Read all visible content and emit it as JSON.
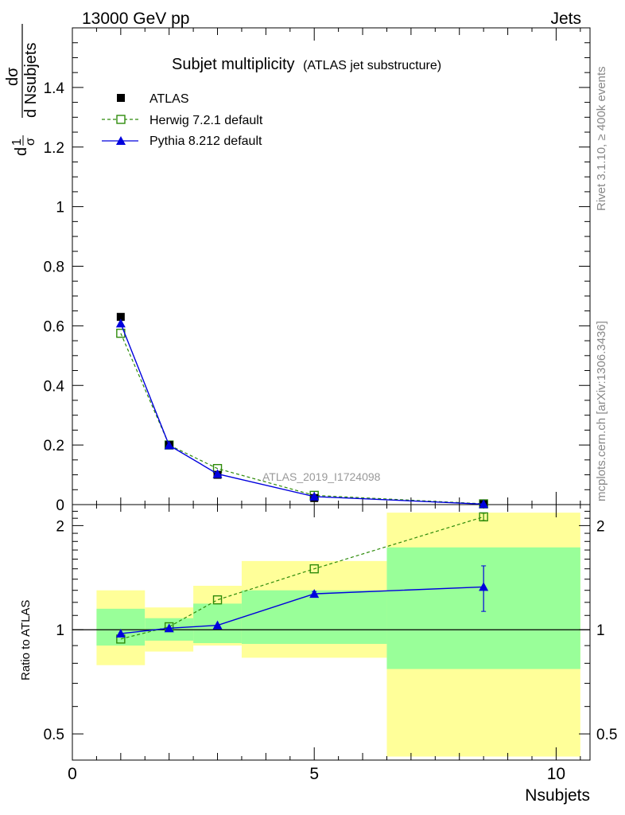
{
  "header": {
    "left": "13000 GeV pp",
    "right": "Jets"
  },
  "side_text": {
    "rivet": "Rivet 3.1.10, ≥ 400k events",
    "mcplots": "mcplots.cern.ch [arXiv:1306.3436]"
  },
  "analysis_label": "ATLAS_2019_I1724098",
  "colors": {
    "data": "#000000",
    "herwig": "#2e8b0a",
    "pythia": "#0000dd",
    "band_inner": "#99ff99",
    "band_outer": "#ffff99"
  },
  "chart_data": [
    {
      "type": "line",
      "panel": "main",
      "title": "Subjet multiplicity",
      "subtitle": "(ATLAS jet substructure)",
      "xlabel": "Nsubjets",
      "ylabel_parts": [
        "dσ",
        "d Nsubjets",
        "1",
        "σ",
        "d"
      ],
      "xlim": [
        0,
        10.7
      ],
      "ylim": [
        0,
        1.6
      ],
      "yticks": [
        0,
        0.2,
        0.4,
        0.6,
        0.8,
        1,
        1.2,
        1.4
      ],
      "ytick_labels": [
        "0",
        "0.2",
        "0.4",
        "0.6",
        "0.8",
        "1",
        "1.2",
        "1.4"
      ],
      "series": [
        {
          "name": "ATLAS",
          "style": "data",
          "x": [
            1,
            2,
            3,
            5,
            8.5
          ],
          "y": [
            0.63,
            0.2,
            0.1,
            0.022,
            0.0012
          ]
        },
        {
          "name": "Herwig 7.2.1 default",
          "style": "herwig",
          "x": [
            1,
            2,
            3,
            5,
            8.5
          ],
          "y": [
            0.575,
            0.2,
            0.121,
            0.031,
            0.0026
          ]
        },
        {
          "name": "Pythia 8.212 default",
          "style": "pythia",
          "x": [
            1,
            2,
            3,
            5,
            8.5
          ],
          "y": [
            0.608,
            0.199,
            0.103,
            0.027,
            0.0016
          ]
        }
      ]
    },
    {
      "type": "line",
      "panel": "ratio",
      "ylabel": "Ratio to ATLAS",
      "xlabel": "Nsubjets",
      "xlim": [
        0,
        10.7
      ],
      "ylim": [
        0.42,
        2.3
      ],
      "yscale": "log",
      "yticks": [
        0.5,
        1,
        2
      ],
      "ytick_labels": [
        "0.5",
        "1",
        "2"
      ],
      "xticks": [
        0,
        5,
        10
      ],
      "xtick_labels": [
        "0",
        "5",
        "10"
      ],
      "bands": [
        {
          "x0": 0.5,
          "x1": 1.5,
          "inner": [
            0.9,
            1.15
          ],
          "outer": [
            0.79,
            1.3
          ]
        },
        {
          "x0": 1.5,
          "x1": 2.5,
          "inner": [
            0.93,
            1.08
          ],
          "outer": [
            0.865,
            1.16
          ]
        },
        {
          "x0": 2.5,
          "x1": 3.5,
          "inner": [
            0.915,
            1.19
          ],
          "outer": [
            0.9,
            1.34
          ]
        },
        {
          "x0": 3.5,
          "x1": 6.5,
          "inner": [
            0.91,
            1.3
          ],
          "outer": [
            0.83,
            1.58
          ]
        },
        {
          "x0": 6.5,
          "x1": 10.5,
          "inner": [
            0.77,
            1.73
          ],
          "outer": [
            0.43,
            2.18
          ]
        }
      ],
      "series": [
        {
          "name": "Herwig 7.2.1 default",
          "style": "herwig",
          "x": [
            1,
            2,
            3,
            5,
            8.5
          ],
          "y": [
            0.94,
            1.02,
            1.22,
            1.5,
            2.12
          ],
          "err": [
            0,
            0,
            0,
            0,
            0.05
          ]
        },
        {
          "name": "Pythia 8.212 default",
          "style": "pythia",
          "x": [
            1,
            2,
            3,
            5,
            8.5
          ],
          "y": [
            0.975,
            1.01,
            1.03,
            1.27,
            1.33
          ],
          "err": [
            0,
            0,
            0,
            0.02,
            0.2
          ]
        }
      ]
    }
  ]
}
